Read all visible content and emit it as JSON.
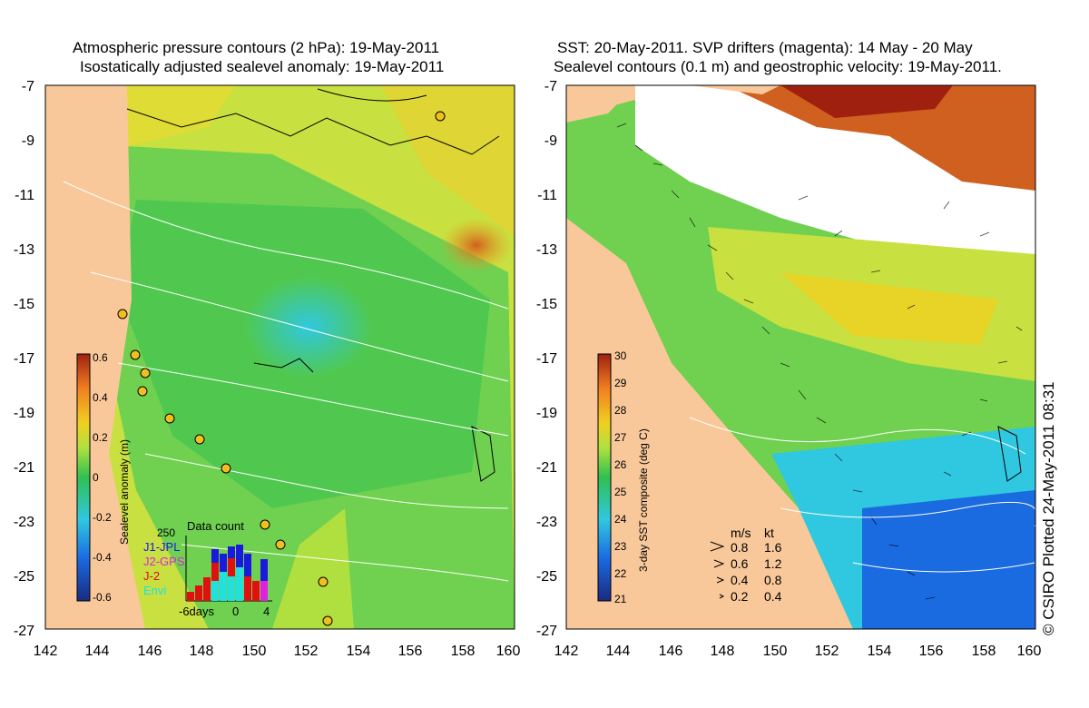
{
  "left_panel": {
    "title_line1": "Atmospheric pressure contours (2 hPa): 19-May-2011",
    "title_line2": "Isostatically adjusted sealevel anomaly: 19-May-2011",
    "colorbar_label": "Sealevel anomaly (m)",
    "colorbar_ticks": [
      "0.6",
      "0.4",
      "0.2",
      "0",
      "-0.2",
      "-0.4",
      "-0.6"
    ],
    "datacount": {
      "max_label": "250",
      "title": "Data count",
      "legend": [
        {
          "name": "J1-JPL",
          "color": "#1a1adc"
        },
        {
          "name": "J2-GPS",
          "color": "#e020e0"
        },
        {
          "name": "J-2",
          "color": "#e01010"
        },
        {
          "name": "Envi",
          "color": "#20e0e0"
        }
      ],
      "axis_labels": [
        "-6days",
        "0",
        "4"
      ]
    }
  },
  "right_panel": {
    "title_line1": "SST: 20-May-2011. SVP drifters (magenta): 14 May - 20 May",
    "title_line2": "Sealevel contours (0.1 m) and geostrophic velocity: 19-May-2011.",
    "colorbar_label": "3-day SST composite (deg C)",
    "colorbar_ticks": [
      "30",
      "29",
      "28",
      "27",
      "26",
      "25",
      "24",
      "23",
      "22",
      "21"
    ],
    "velocity_legend": {
      "header_ms": "m/s",
      "header_kt": "kt",
      "rows": [
        {
          "ms": "0.8",
          "kt": "1.6"
        },
        {
          "ms": "0.6",
          "kt": "1.2"
        },
        {
          "ms": "0.4",
          "kt": "0.8"
        },
        {
          "ms": "0.2",
          "kt": "0.4"
        }
      ]
    }
  },
  "axes": {
    "y_ticks": [
      "-7",
      "-9",
      "-11",
      "-13",
      "-15",
      "-17",
      "-19",
      "-21",
      "-23",
      "-25",
      "-27"
    ],
    "x_ticks": [
      "142",
      "144",
      "146",
      "148",
      "150",
      "152",
      "154",
      "156",
      "158",
      "160"
    ]
  },
  "copyright": "© CSIRO Plotted 24-May-2011 08:31",
  "colors": {
    "land": "#f9c89a",
    "sla_scale": [
      "#1a2a80",
      "#1a6ae0",
      "#30c8e0",
      "#30c050",
      "#b0e040",
      "#f0d020",
      "#f08020",
      "#a02010"
    ],
    "sst_scale": [
      "#1a2a80",
      "#1a6ae0",
      "#30c8e0",
      "#30c050",
      "#b0e040",
      "#f0d020",
      "#f08020",
      "#a02010"
    ]
  }
}
